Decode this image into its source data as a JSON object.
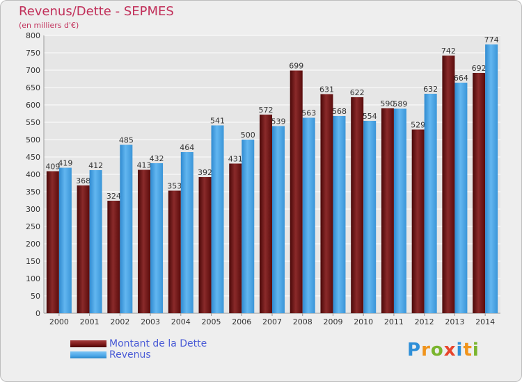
{
  "title": "Revenus/Dette - SEPMES",
  "subtitle": "(en milliers d'€)",
  "logo": {
    "letters": [
      {
        "ch": "P",
        "color": "#2e8fd8"
      },
      {
        "ch": "r",
        "color": "#f0941c"
      },
      {
        "ch": "o",
        "color": "#7ab52e"
      },
      {
        "ch": "x",
        "color": "#e8452c"
      },
      {
        "ch": "i",
        "color": "#2e8fd8"
      },
      {
        "ch": "t",
        "color": "#f0941c"
      },
      {
        "ch": "i",
        "color": "#7ab52e"
      }
    ]
  },
  "colors": {
    "dette": "#7a1818",
    "revenus": "#4da8e8",
    "grid": "#ffffff",
    "axis_text": "#333333",
    "label_text": "#333333"
  },
  "chart_data": {
    "type": "bar",
    "title": "Revenus/Dette - SEPMES",
    "categories": [
      "2000",
      "2001",
      "2002",
      "2003",
      "2004",
      "2005",
      "2006",
      "2007",
      "2008",
      "2009",
      "2010",
      "2011",
      "2012",
      "2013",
      "2014"
    ],
    "series": [
      {
        "name": "Montant de la Dette",
        "values": [
          409,
          368,
          324,
          413,
          353,
          392,
          431,
          572,
          699,
          631,
          622,
          590,
          529,
          742,
          692
        ]
      },
      {
        "name": "Revenus",
        "values": [
          419,
          412,
          485,
          432,
          464,
          541,
          500,
          539,
          563,
          568,
          554,
          589,
          632,
          664,
          774
        ]
      }
    ],
    "ylim": [
      0,
      800
    ],
    "yticks": [
      0,
      50,
      100,
      150,
      200,
      250,
      300,
      350,
      400,
      450,
      500,
      550,
      600,
      650,
      700,
      750,
      800
    ],
    "grid": true,
    "legend": "bottom-left"
  }
}
